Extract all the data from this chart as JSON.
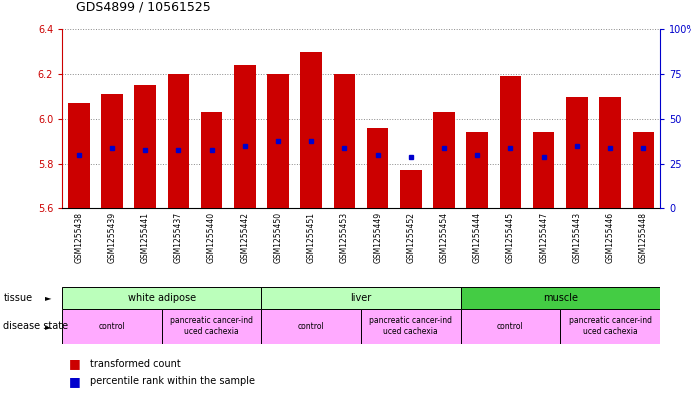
{
  "title": "GDS4899 / 10561525",
  "samples": [
    "GSM1255438",
    "GSM1255439",
    "GSM1255441",
    "GSM1255437",
    "GSM1255440",
    "GSM1255442",
    "GSM1255450",
    "GSM1255451",
    "GSM1255453",
    "GSM1255449",
    "GSM1255452",
    "GSM1255454",
    "GSM1255444",
    "GSM1255445",
    "GSM1255447",
    "GSM1255443",
    "GSM1255446",
    "GSM1255448"
  ],
  "bar_tops": [
    6.07,
    6.11,
    6.15,
    6.2,
    6.03,
    6.24,
    6.2,
    6.3,
    6.2,
    5.96,
    5.77,
    6.03,
    5.94,
    6.19,
    5.94,
    6.1,
    6.1,
    5.94
  ],
  "blue_dots": [
    5.84,
    5.87,
    5.86,
    5.86,
    5.86,
    5.88,
    5.9,
    5.9,
    5.87,
    5.84,
    5.83,
    5.87,
    5.84,
    5.87,
    5.83,
    5.88,
    5.87,
    5.87
  ],
  "bar_color": "#cc0000",
  "dot_color": "#0000cc",
  "ymin": 5.6,
  "ymax": 6.4,
  "yticks_left": [
    5.6,
    5.8,
    6.0,
    6.2,
    6.4
  ],
  "yticks_right": [
    0,
    25,
    50,
    75,
    100
  ],
  "tissue_groups": [
    {
      "label": "white adipose",
      "start": 0,
      "end": 6,
      "color": "#bbffbb"
    },
    {
      "label": "liver",
      "start": 6,
      "end": 12,
      "color": "#bbffbb"
    },
    {
      "label": "muscle",
      "start": 12,
      "end": 18,
      "color": "#44cc44"
    }
  ],
  "disease_groups": [
    {
      "label": "control",
      "start": 0,
      "end": 3
    },
    {
      "label": "pancreatic cancer-ind\nuced cachexia",
      "start": 3,
      "end": 6
    },
    {
      "label": "control",
      "start": 6,
      "end": 9
    },
    {
      "label": "pancreatic cancer-ind\nuced cachexia",
      "start": 9,
      "end": 12
    },
    {
      "label": "control",
      "start": 12,
      "end": 15
    },
    {
      "label": "pancreatic cancer-ind\nuced cachexia",
      "start": 15,
      "end": 18
    }
  ],
  "disease_color": "#ffaaff",
  "left_tick_color": "#cc0000",
  "right_tick_color": "#0000cc",
  "bg_color": "#ffffff",
  "grid_color": "#888888",
  "sample_bg_color": "#dddddd"
}
